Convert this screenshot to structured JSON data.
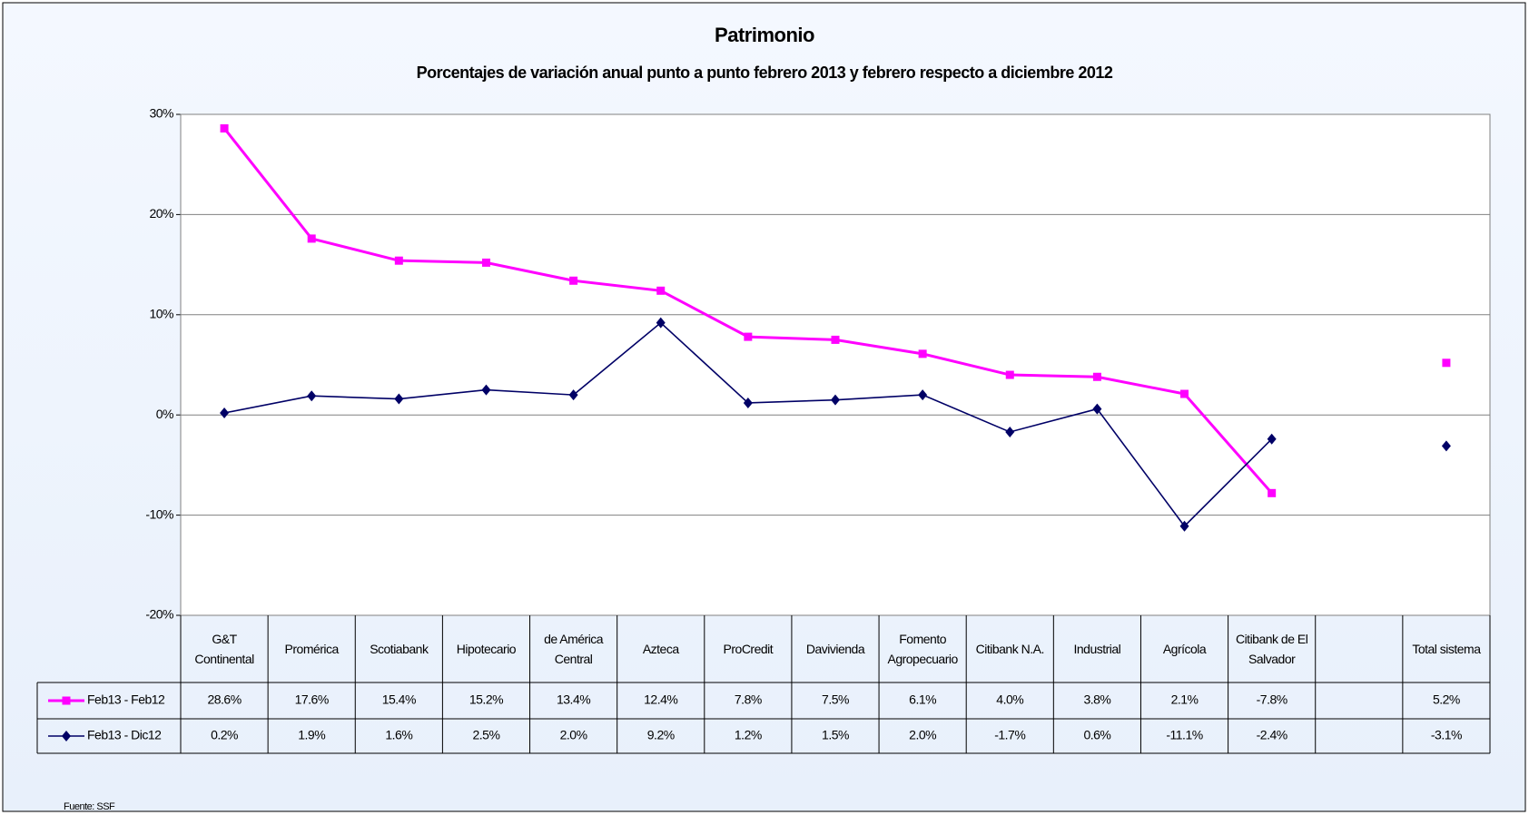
{
  "chart_data": {
    "type": "line",
    "title": "Patrimonio",
    "subtitle": "Porcentajes de variación anual punto a punto febrero 2013 y febrero respecto a diciembre 2012",
    "categories": [
      "G&T Continental",
      "Promérica",
      "Scotiabank",
      "Hipotecario",
      "de América Central",
      "Azteca",
      "ProCredit",
      "Davivienda",
      "Fomento Agropecuario",
      "Citibank N.A.",
      "Industrial",
      "Agrícola",
      "Citibank de El Salvador",
      null,
      "Total sistema"
    ],
    "series": [
      {
        "name": "Feb13 - Feb12",
        "color": "#ff00ff",
        "marker": "square",
        "values": [
          28.6,
          17.6,
          15.4,
          15.2,
          13.4,
          12.4,
          7.8,
          7.5,
          6.1,
          4.0,
          3.8,
          2.1,
          -7.8,
          null,
          5.2
        ],
        "value_labels": [
          "28.6%",
          "17.6%",
          "15.4%",
          "15.2%",
          "13.4%",
          "12.4%",
          "7.8%",
          "7.5%",
          "6.1%",
          "4.0%",
          "3.8%",
          "2.1%",
          "-7.8%",
          null,
          "5.2%"
        ]
      },
      {
        "name": "Feb13 - Dic12",
        "color": "#000066",
        "marker": "diamond",
        "values": [
          0.2,
          1.9,
          1.6,
          2.5,
          2.0,
          9.2,
          1.2,
          1.5,
          2.0,
          -1.7,
          0.6,
          -11.1,
          -2.4,
          null,
          -3.1
        ],
        "value_labels": [
          "0.2%",
          "1.9%",
          "1.6%",
          "2.5%",
          "2.0%",
          "9.2%",
          "1.2%",
          "1.5%",
          "2.0%",
          "-1.7%",
          "0.6%",
          "-11.1%",
          "-2.4%",
          null,
          "-3.1%"
        ]
      }
    ],
    "ylim": [
      -20,
      30
    ],
    "yticks": [
      {
        "value": -20,
        "label": "-20%"
      },
      {
        "value": -10,
        "label": "-10%"
      },
      {
        "value": 0,
        "label": "0%"
      },
      {
        "value": 10,
        "label": "10%"
      },
      {
        "value": 20,
        "label": "20%"
      },
      {
        "value": 30,
        "label": "30%"
      }
    ],
    "grid": true,
    "source": "Fuente: SSF"
  }
}
